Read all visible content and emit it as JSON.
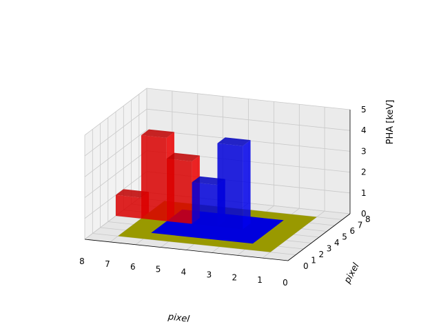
{
  "chart_data": {
    "type": "bar3d",
    "xlabel": "pixel",
    "ylabel": "pixel",
    "zlabel": "PHA [keV]",
    "xlim": [
      0,
      8
    ],
    "ylim": [
      0,
      8
    ],
    "zlim": [
      0,
      5
    ],
    "xticks": [
      "0",
      "1",
      "2",
      "3",
      "4",
      "5",
      "6",
      "7",
      "8"
    ],
    "yticks": [
      "0",
      "1",
      "2",
      "3",
      "4",
      "5",
      "6",
      "7",
      "8"
    ],
    "zticks": [
      "0",
      "1",
      "2",
      "3",
      "4",
      "5"
    ],
    "grid": true,
    "series": [
      {
        "color": "#ff0000",
        "bars": [
          {
            "x": 7,
            "y": 4,
            "dx": 1,
            "dy": 1,
            "z": 0,
            "dz": 1
          },
          {
            "x": 6,
            "y": 4,
            "dx": 1,
            "dy": 1,
            "z": 0,
            "dz": 4
          },
          {
            "x": 5,
            "y": 4,
            "dx": 1,
            "dy": 1,
            "z": 0,
            "dz": 3
          }
        ]
      },
      {
        "color": "#0000ff",
        "bars": [
          {
            "x": 4,
            "y": 4,
            "dx": 1,
            "dy": 1,
            "z": 0,
            "dz": 2
          },
          {
            "x": 3,
            "y": 4,
            "dx": 1,
            "dy": 1,
            "z": 0,
            "dz": 4
          }
        ]
      }
    ],
    "patches": [
      {
        "color": "#999900",
        "x0": 1,
        "x1": 7,
        "y0": 1,
        "y1": 7,
        "z": 0
      },
      {
        "color": "#0000dd",
        "x0": 2,
        "x1": 6,
        "y0": 2,
        "y1": 6,
        "z": 0
      }
    ]
  }
}
